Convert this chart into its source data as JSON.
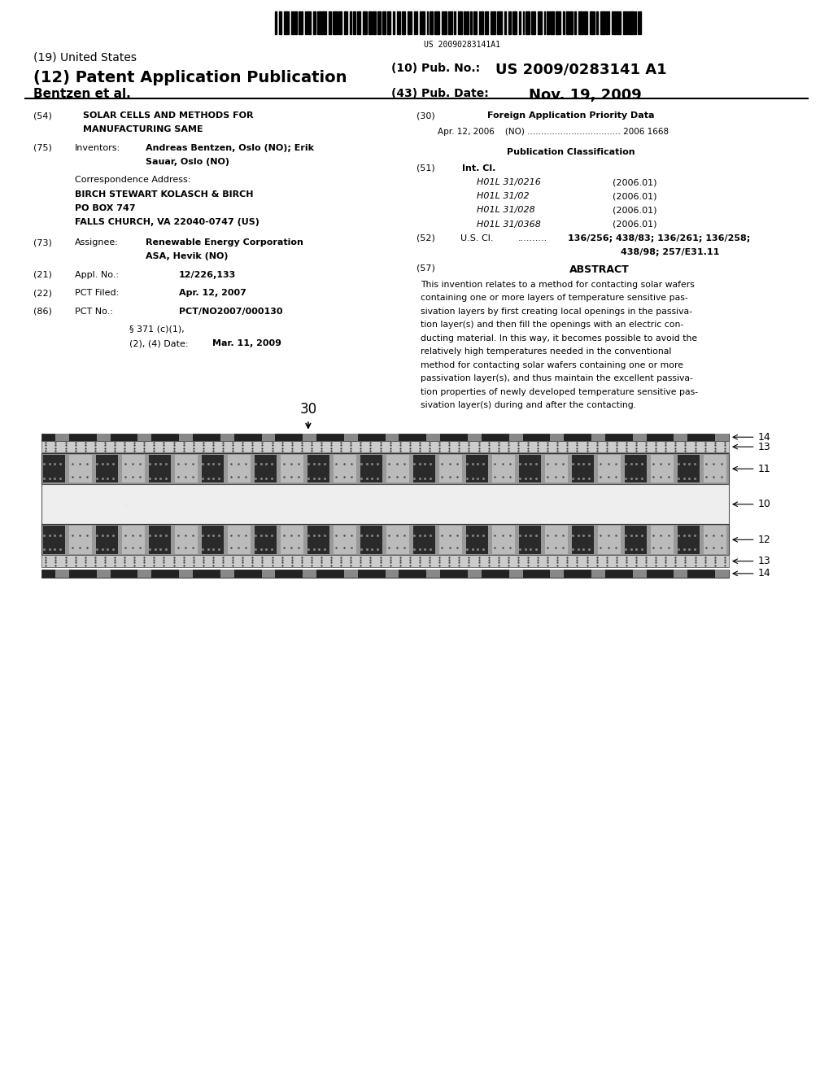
{
  "bg_color": "#ffffff",
  "barcode_text": "US 20090283141A1",
  "title_19": "(19) United States",
  "title_12": "(12) Patent Application Publication",
  "pub_no_label": "(10) Pub. No.:",
  "pub_no_value": "US 2009/0283141 A1",
  "author": "Bentzen et al.",
  "pub_date_label": "(43) Pub. Date:",
  "pub_date_value": "Nov. 19, 2009",
  "field54_label": "(54)",
  "field54_text1": "SOLAR CELLS AND METHODS FOR",
  "field54_text2": "MANUFACTURING SAME",
  "field75_label": "(75)",
  "field75_key": "Inventors:",
  "field75_val1": "Andreas Bentzen, Oslo (NO); Erik",
  "field75_val2": "Sauar, Oslo (NO)",
  "corr_label": "Correspondence Address:",
  "corr_line1": "BIRCH STEWART KOLASCH & BIRCH",
  "corr_line2": "PO BOX 747",
  "corr_line3": "FALLS CHURCH, VA 22040-0747 (US)",
  "field73_label": "(73)",
  "field73_key": "Assignee:",
  "field73_val1": "Renewable Energy Corporation",
  "field73_val2": "ASA, Hevik (NO)",
  "field21_label": "(21)",
  "field21_key": "Appl. No.:",
  "field21_val": "12/226,133",
  "field22_label": "(22)",
  "field22_key": "PCT Filed:",
  "field22_val": "Apr. 12, 2007",
  "field86_label": "(86)",
  "field86_key": "PCT No.:",
  "field86_val": "PCT/NO2007/000130",
  "field86b_val1": "§ 371 (c)(1),",
  "field86b_val2": "(2), (4) Date:",
  "field86b_val3": "Mar. 11, 2009",
  "field30_label": "(30)",
  "field30_title": "Foreign Application Priority Data",
  "field30_val": "Apr. 12, 2006    (NO) .................................. 2006 1668",
  "pub_class_title": "Publication Classification",
  "field51_label": "(51)",
  "field51_key": "Int. Cl.",
  "field51_items": [
    [
      "H01L 31/0216",
      "(2006.01)"
    ],
    [
      "H01L 31/02",
      "(2006.01)"
    ],
    [
      "H01L 31/028",
      "(2006.01)"
    ],
    [
      "H01L 31/0368",
      "(2006.01)"
    ]
  ],
  "field52_label": "(52)",
  "field52_key": "U.S. Cl.",
  "field52_dots": "..........",
  "field52_val1": "136/256; 438/83; 136/261; 136/258;",
  "field52_val2": "438/98; 257/E31.11",
  "field57_label": "(57)",
  "field57_title": "ABSTRACT",
  "abstract_lines": [
    "This invention relates to a method for contacting solar wafers",
    "containing one or more layers of temperature sensitive pas-",
    "sivation layers by first creating local openings in the passiva-",
    "tion layer(s) and then fill the openings with an electric con-",
    "ducting material. In this way, it becomes possible to avoid the",
    "relatively high temperatures needed in the conventional",
    "method for contacting solar wafers containing one or more",
    "passivation layer(s), and thus maintain the excellent passiva-",
    "tion properties of newly developed temperature sensitive pas-",
    "sivation layer(s) during and after the contacting."
  ],
  "diagram_label30": "30",
  "diagram_labels_right": [
    "14",
    "13",
    "11",
    "10",
    "12",
    "13",
    "14"
  ]
}
